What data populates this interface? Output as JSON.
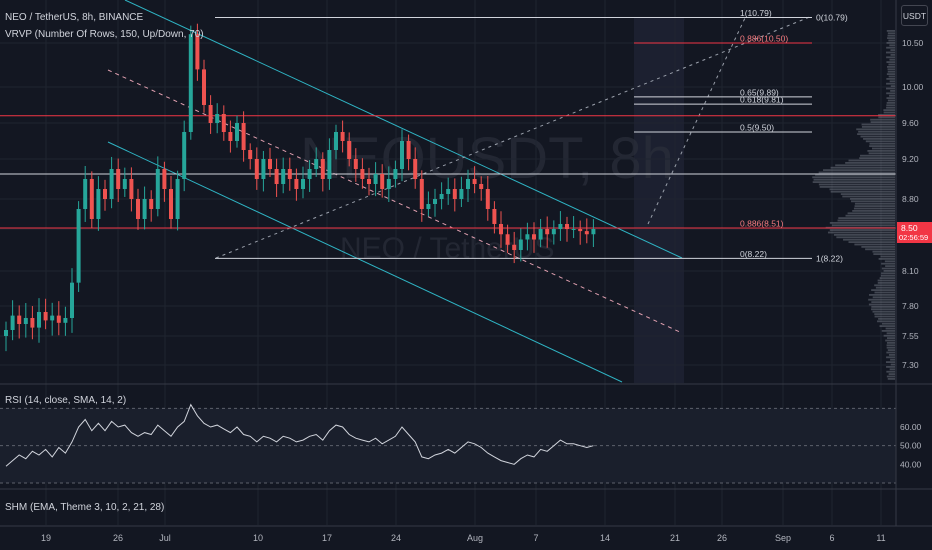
{
  "symbol_title": "NEO / TetherUS, 8h, BINANCE",
  "vrvp_label": "VRVP (Number Of Rows, 150, Up/Down, 70)",
  "rsi_label": "RSI (14, close, SMA, 14, 2)",
  "shm_label": "SHM (EMA, Theme 3, 10, 2, 21, 28)",
  "currency": "USDT",
  "watermark": {
    "symbol": "NEOUSDT, 8h",
    "description": "NEO / TetherUS"
  },
  "price_badge": {
    "price": "8.50",
    "countdown": "02:56:59"
  },
  "colors": {
    "background": "#131722",
    "up": "#26a69a",
    "down": "#ef5350",
    "channel": "#2fb4c4",
    "fib_red": "#ef5350",
    "grid": "#1f2430",
    "volume_profile": "#9aa0ab",
    "rsi_line": "#d1d4dc"
  },
  "chart_data": [
    {
      "type": "line",
      "pane": "price",
      "title": "NEO / TetherUS, 8h, BINANCE",
      "price_axis_ticks": [
        "10.50",
        "10.00",
        "9.60",
        "9.20",
        "8.80",
        "8.50",
        "8.10",
        "7.80",
        "7.55",
        "7.30"
      ],
      "time_axis_ticks": [
        "19",
        "26",
        "Jul",
        "10",
        "17",
        "24",
        "Aug",
        "7",
        "14",
        "21",
        "26",
        "Sep",
        "6",
        "11"
      ],
      "ylim": [
        7.15,
        11.0
      ],
      "horizontal_levels": [
        8.51,
        9.05,
        9.68
      ],
      "fib_retracement": [
        {
          "label": "1(10.79)",
          "price": 10.79
        },
        {
          "label": "0.886(10.50)",
          "price": 10.5
        },
        {
          "label": "0.65(9.89)",
          "price": 9.89
        },
        {
          "label": "0.618(9.81)",
          "price": 9.81
        },
        {
          "label": "0.5(9.50)",
          "price": 9.5
        },
        {
          "label": "0.886(8.51)",
          "price": 8.51
        },
        {
          "label": "0(8.22)",
          "price": 8.22
        }
      ],
      "fib_right_labels": [
        {
          "label": "0(10.79)",
          "price": 10.79
        },
        {
          "label": "1(8.22)",
          "price": 8.22
        }
      ],
      "series": [
        {
          "values": [
            7.6,
            7.72,
            7.65,
            7.7,
            7.62,
            7.75,
            7.68,
            7.72,
            7.66,
            7.7,
            8.0,
            8.7,
            9.0,
            8.6,
            8.9,
            8.8,
            9.1,
            8.9,
            9.0,
            8.8,
            8.6,
            8.8,
            8.7,
            9.1,
            8.9,
            8.6,
            9.0,
            9.5,
            10.6,
            10.2,
            9.8,
            9.6,
            9.7,
            9.5,
            9.4,
            9.6,
            9.3,
            9.2,
            9.0,
            9.2,
            9.1,
            8.95,
            9.1,
            9.0,
            8.9,
            9.0,
            9.1,
            9.2,
            9.0,
            9.3,
            9.5,
            9.4,
            9.2,
            9.1,
            9.0,
            8.95,
            9.05,
            8.9,
            9.0,
            9.1,
            9.4,
            9.2,
            9.0,
            8.7,
            8.75,
            8.8,
            8.85,
            8.9,
            8.8,
            8.9,
            9.0,
            8.95,
            8.9,
            8.7,
            8.55,
            8.45,
            8.35,
            8.3,
            8.4,
            8.45,
            8.4,
            8.5,
            8.45,
            8.5,
            8.55,
            8.5,
            8.5,
            8.48,
            8.45,
            8.5
          ],
          "candles": true
        }
      ]
    },
    {
      "type": "line",
      "pane": "rsi",
      "title": "RSI (14, close, SMA, 14, 2)",
      "rsi_axis_ticks": [
        "60.00",
        "50.00",
        "40.00"
      ],
      "ylim": [
        30,
        75
      ],
      "bands": [
        70,
        50,
        30
      ],
      "series": [
        {
          "values": [
            39,
            42,
            45,
            43,
            47,
            45,
            48,
            44,
            49,
            46,
            52,
            60,
            64,
            58,
            62,
            58,
            63,
            60,
            61,
            57,
            55,
            57,
            56,
            61,
            58,
            55,
            60,
            63,
            72,
            66,
            62,
            60,
            61,
            59,
            57,
            60,
            56,
            55,
            52,
            55,
            54,
            52,
            55,
            54,
            52,
            53,
            55,
            56,
            53,
            58,
            61,
            60,
            56,
            54,
            53,
            52,
            54,
            51,
            53,
            55,
            60,
            56,
            52,
            44,
            43,
            45,
            46,
            48,
            46,
            49,
            52,
            51,
            49,
            46,
            44,
            42,
            41,
            40,
            43,
            45,
            44,
            48,
            47,
            50,
            53,
            51,
            51,
            50,
            49,
            50
          ]
        }
      ]
    }
  ]
}
